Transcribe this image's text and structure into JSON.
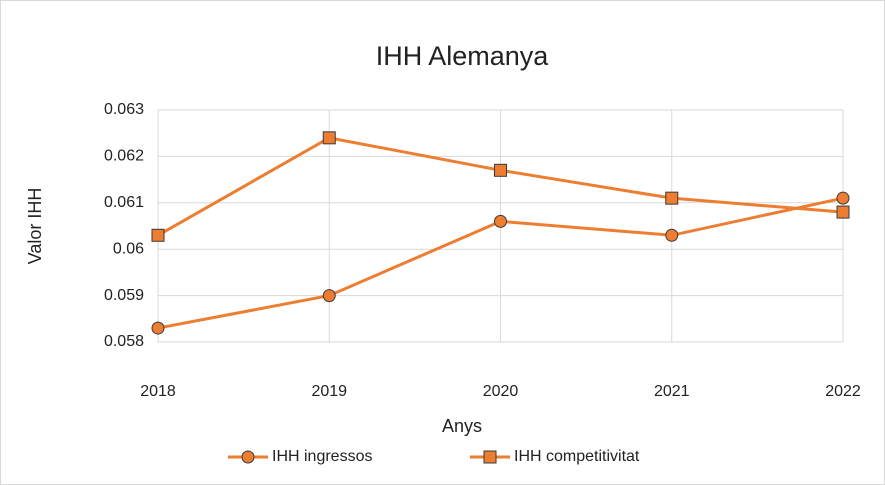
{
  "chart_data": {
    "type": "line",
    "title": "IHH Alemanya",
    "x_label": "Anys",
    "y_label": "Valor IHH",
    "categories": [
      "2018",
      "2019",
      "2020",
      "2021",
      "2022"
    ],
    "series": [
      {
        "name": "IHH ingressos",
        "color": "#ED7D31",
        "marker": "circle",
        "values": [
          0.0583,
          0.059,
          0.0606,
          0.0603,
          0.0611
        ]
      },
      {
        "name": "IHH competitivitat",
        "color": "#ED7D31",
        "marker": "square",
        "values": [
          0.0603,
          0.0624,
          0.0617,
          0.0611,
          0.0608
        ]
      }
    ],
    "ylim": [
      0.058,
      0.063
    ],
    "yticks": [
      0.058,
      0.059,
      0.06,
      0.061,
      0.062,
      0.063
    ],
    "grid": true,
    "legend": "bottom"
  }
}
